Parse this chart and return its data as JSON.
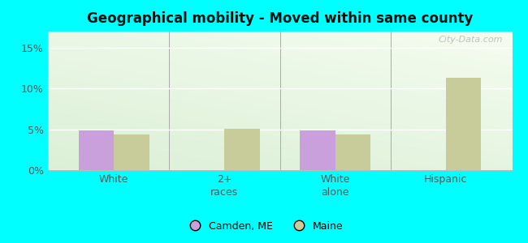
{
  "title": "Geographical mobility - Moved within same county",
  "categories": [
    "White",
    "2+\nraces",
    "White\nalone",
    "Hispanic"
  ],
  "camden_values": [
    4.9,
    0,
    4.9,
    0
  ],
  "maine_values": [
    4.4,
    5.1,
    4.4,
    11.3
  ],
  "camden_color": "#c9a0dc",
  "maine_color": "#c8cc9a",
  "ylim": [
    0,
    17
  ],
  "yticks": [
    0,
    5,
    10,
    15
  ],
  "ytick_labels": [
    "0%",
    "5%",
    "10%",
    "15%"
  ],
  "background_color": "#00ffff",
  "gradient_top_left": "#d4edda",
  "gradient_bottom_right": "#f0faf0",
  "watermark": "City-Data.com",
  "bar_width": 0.32,
  "legend_camden": "Camden, ME",
  "legend_maine": "Maine"
}
